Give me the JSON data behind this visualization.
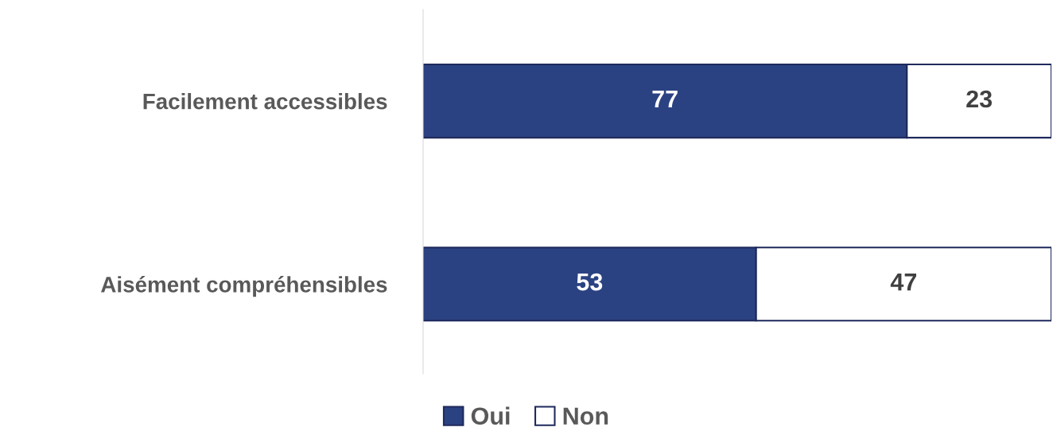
{
  "chart_data": {
    "type": "bar",
    "orientation": "horizontal",
    "stacked": true,
    "data_labels": true,
    "grid": false,
    "legend": "bottom",
    "categories": [
      "Facilement accessibles",
      "Aisément compréhensibles"
    ],
    "xlim": [
      0,
      100
    ],
    "tick_labels": "y",
    "series": [
      {
        "name": "Oui",
        "color": "#2b4282",
        "values": [
          77,
          53
        ]
      },
      {
        "name": "Non",
        "color": "#ffffff",
        "values": [
          23,
          47
        ]
      }
    ]
  }
}
